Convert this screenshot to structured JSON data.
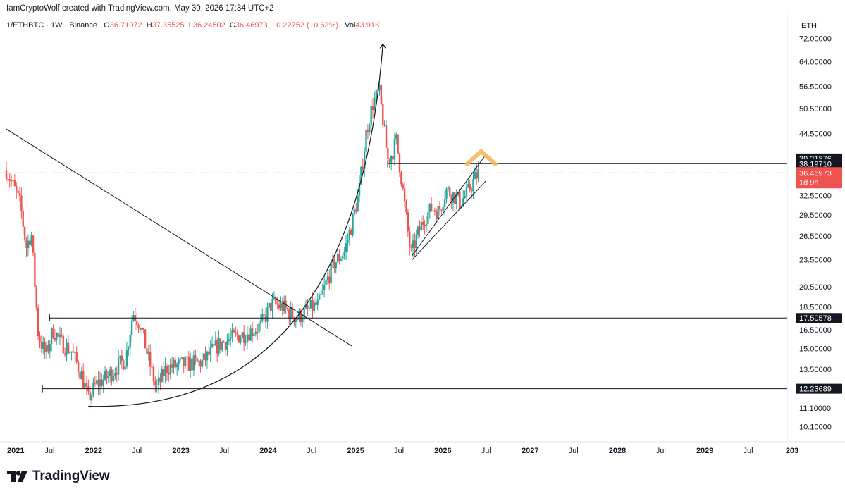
{
  "header": {
    "credit": "IamCryptoWolf created with TradingView.com, May 30, 2026 17:34 UTC+2"
  },
  "legend": {
    "symbol": "1/ETHBTC · 1W · Binance",
    "o_label": "O",
    "o_value": "36.71072",
    "h_label": "H",
    "h_value": "37.35525",
    "l_label": "L",
    "l_value": "36.24502",
    "c_label": "C",
    "c_value": "36.46973",
    "change": "−0.22752 (−0.62%)",
    "vol_label": "Vol",
    "vol_value": "43.91K"
  },
  "brand": {
    "name": "TradingView"
  },
  "colors": {
    "up": "#26a69a",
    "down": "#ef5350",
    "line": "#131722",
    "highlight": "#f5b95a"
  },
  "chart_data": {
    "type": "candlestick",
    "title": "1/ETHBTC · 1W · Binance",
    "y_axis": {
      "unit": "ETH",
      "scale": "log",
      "range": [
        9.5,
        75
      ],
      "ticks": [
        "72.00000",
        "64.00000",
        "56.50000",
        "50.50000",
        "44.50000",
        "32.50000",
        "29.50000",
        "26.50000",
        "23.50000",
        "20.50000",
        "18.50000",
        "16.50000",
        "15.00000",
        "13.50000",
        "11.10000",
        "10.10000"
      ],
      "markers": [
        {
          "label": "39.21876",
          "value": 39.21876,
          "style": "dark"
        },
        {
          "label": "38.19710",
          "value": 38.1971,
          "style": "dark"
        },
        {
          "label": "36.46973",
          "sub": "1d 9h",
          "value": 36.46973,
          "style": "red"
        },
        {
          "label": "17.50578",
          "value": 17.50578,
          "style": "dark"
        },
        {
          "label": "12.23689",
          "value": 12.23689,
          "style": "dark"
        }
      ]
    },
    "x_axis": {
      "range": [
        "2021-01-01",
        "2030-01-15"
      ],
      "ticks": [
        {
          "label": "2021",
          "date": "2021-01-01",
          "bold": true
        },
        {
          "label": "Jul",
          "date": "2021-07-01"
        },
        {
          "label": "2022",
          "date": "2022-01-01",
          "bold": true
        },
        {
          "label": "Jul",
          "date": "2022-07-01"
        },
        {
          "label": "2023",
          "date": "2023-01-01",
          "bold": true
        },
        {
          "label": "Jul",
          "date": "2023-07-01"
        },
        {
          "label": "2024",
          "date": "2024-01-01",
          "bold": true
        },
        {
          "label": "Jul",
          "date": "2024-07-01"
        },
        {
          "label": "2025",
          "date": "2025-01-01",
          "bold": true
        },
        {
          "label": "Jul",
          "date": "2025-07-01"
        },
        {
          "label": "2026",
          "date": "2026-01-01",
          "bold": true
        },
        {
          "label": "Jul",
          "date": "2026-07-01"
        },
        {
          "label": "2027",
          "date": "2027-01-01",
          "bold": true
        },
        {
          "label": "Jul",
          "date": "2027-07-01"
        },
        {
          "label": "2028",
          "date": "2028-01-01",
          "bold": true
        },
        {
          "label": "Jul",
          "date": "2028-07-01"
        },
        {
          "label": "2029",
          "date": "2029-01-01",
          "bold": true
        },
        {
          "label": "Jul",
          "date": "2029-07-01"
        },
        {
          "label": "203",
          "date": "2030-01-01",
          "bold": true
        }
      ]
    },
    "price_path": [
      [
        "2021-01-01",
        37.0
      ],
      [
        "2021-02-10",
        33.0
      ],
      [
        "2021-03-01",
        31.0
      ],
      [
        "2021-03-25",
        25.0
      ],
      [
        "2021-04-15",
        27.0
      ],
      [
        "2021-05-15",
        16.0
      ],
      [
        "2021-06-15",
        14.5
      ],
      [
        "2021-07-15",
        16.5
      ],
      [
        "2021-08-15",
        15.5
      ],
      [
        "2021-10-01",
        14.8
      ],
      [
        "2021-11-15",
        13.0
      ],
      [
        "2021-12-10",
        11.6
      ],
      [
        "2022-01-10",
        12.5
      ],
      [
        "2022-03-01",
        13.0
      ],
      [
        "2022-04-15",
        13.8
      ],
      [
        "2022-05-15",
        14.2
      ],
      [
        "2022-06-15",
        18.0
      ],
      [
        "2022-07-15",
        17.0
      ],
      [
        "2022-08-15",
        14.5
      ],
      [
        "2022-09-20",
        12.2
      ],
      [
        "2022-11-01",
        13.6
      ],
      [
        "2023-01-01",
        13.8
      ],
      [
        "2023-04-01",
        14.0
      ],
      [
        "2023-06-01",
        15.2
      ],
      [
        "2023-08-01",
        15.8
      ],
      [
        "2023-10-01",
        16.2
      ],
      [
        "2023-12-01",
        16.8
      ],
      [
        "2024-01-15",
        18.8
      ],
      [
        "2024-03-01",
        18.5
      ],
      [
        "2024-05-01",
        17.5
      ],
      [
        "2024-06-15",
        18.2
      ],
      [
        "2024-08-01",
        18.8
      ],
      [
        "2024-09-01",
        21.0
      ],
      [
        "2024-10-01",
        23.0
      ],
      [
        "2024-11-15",
        24.5
      ],
      [
        "2024-12-15",
        28.0
      ],
      [
        "2025-01-15",
        33.0
      ],
      [
        "2025-02-15",
        45.0
      ],
      [
        "2025-03-15",
        52.0
      ],
      [
        "2025-04-10",
        55.0
      ],
      [
        "2025-05-01",
        45.0
      ],
      [
        "2025-05-15",
        39.0
      ],
      [
        "2025-06-01",
        40.0
      ],
      [
        "2025-06-20",
        43.0
      ],
      [
        "2025-07-10",
        36.0
      ],
      [
        "2025-07-25",
        31.0
      ],
      [
        "2025-08-20",
        24.0
      ],
      [
        "2025-09-15",
        26.5
      ],
      [
        "2025-10-15",
        29.0
      ],
      [
        "2025-11-15",
        30.5
      ],
      [
        "2025-12-15",
        30.0
      ],
      [
        "2026-01-15",
        33.5
      ],
      [
        "2026-02-15",
        32.5
      ],
      [
        "2026-03-15",
        31.5
      ],
      [
        "2026-04-15",
        33.0
      ],
      [
        "2026-05-15",
        35.5
      ],
      [
        "2026-05-30",
        36.47
      ]
    ],
    "annotations": [
      {
        "type": "hline",
        "value": 38.1971,
        "from": "2025-05-15"
      },
      {
        "type": "hline",
        "value": 17.50578,
        "from": "2021-07-01"
      },
      {
        "type": "hline",
        "value": 12.23689,
        "from": "2021-06-01"
      },
      {
        "type": "trendline",
        "from": [
          "2021-01-01",
          45.5
        ],
        "to": [
          "2024-12-15",
          15.2
        ]
      },
      {
        "type": "parabolic_curve",
        "from": [
          "2021-12-10",
          11.2
        ],
        "to": [
          "2025-04-25",
          70.0
        ],
        "arrow": true
      },
      {
        "type": "rising_wedge",
        "upper": [
          [
            "2025-08-25",
            24.0
          ],
          [
            "2026-06-30",
            40.0
          ]
        ],
        "lower": [
          [
            "2025-08-25",
            23.5
          ],
          [
            "2026-06-30",
            35.0
          ]
        ]
      },
      {
        "type": "highlight",
        "at": "2026-06-10",
        "value": 39.8
      }
    ]
  }
}
